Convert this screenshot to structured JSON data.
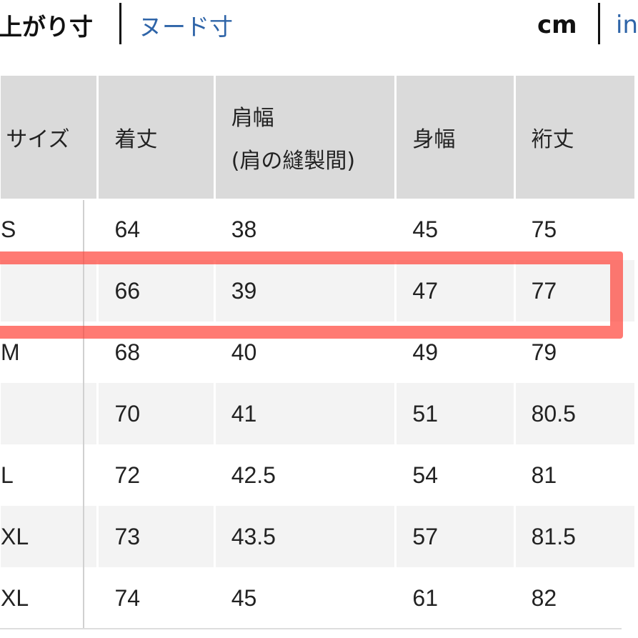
{
  "tabs": {
    "active": "上がり寸",
    "other": "ヌード寸"
  },
  "units": {
    "active": "cm",
    "other": "in"
  },
  "table": {
    "headers": [
      "サイズ",
      "着丈",
      "肩幅",
      "(肩の縫製間)",
      "身幅",
      "裄丈"
    ],
    "rows": [
      [
        "S",
        "64",
        "38",
        "45",
        "75"
      ],
      [
        "",
        "66",
        "39",
        "47",
        "77"
      ],
      [
        "M",
        "68",
        "40",
        "49",
        "79"
      ],
      [
        "",
        "70",
        "41",
        "51",
        "80.5"
      ],
      [
        "L",
        "72",
        "42.5",
        "54",
        "81"
      ],
      [
        "XL",
        "73",
        "43.5",
        "57",
        "81.5"
      ],
      [
        "XL",
        "74",
        "45",
        "61",
        "82"
      ]
    ],
    "highlighted_row": 1
  },
  "colors": {
    "highlight": "#ff3c32",
    "link": "#2e64a8",
    "header_bg": "#dadada"
  }
}
